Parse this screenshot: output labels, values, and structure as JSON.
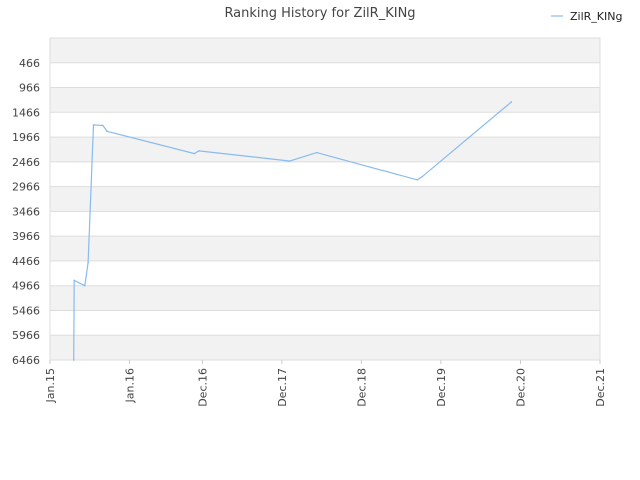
{
  "chart_data": {
    "type": "line",
    "title": "Ranking History for ZilR_KINg",
    "xlabel": "",
    "ylabel": "",
    "x_tick_labels": [
      "Jan.15",
      "Jan.16",
      "Dec.16",
      "Dec.17",
      "Dec.18",
      "Dec.19",
      "Dec.20",
      "Dec.21"
    ],
    "x_tick_dates": [
      "2015-01-01",
      "2016-01-01",
      "2016-12-01",
      "2017-12-01",
      "2018-12-01",
      "2019-12-01",
      "2020-12-01",
      "2021-12-01"
    ],
    "xlim": [
      "2015-01-01",
      "2021-12-01"
    ],
    "y_tick_labels": [
      "466",
      "966",
      "1466",
      "1966",
      "2466",
      "2966",
      "3466",
      "3966",
      "4466",
      "4966",
      "5466",
      "5966",
      "6466"
    ],
    "y_ticks": [
      466,
      966,
      1466,
      1966,
      2466,
      2966,
      3466,
      3966,
      4466,
      4966,
      5466,
      5966,
      6466
    ],
    "ylim": [
      -34,
      6466
    ],
    "y_inverted": true,
    "grid": true,
    "legend_position": "top-right",
    "series": [
      {
        "name": "ZilR_KINg",
        "color": "#88bbee",
        "x": [
          "2015-04-20",
          "2015-04-22",
          "2015-06-10",
          "2015-06-25",
          "2015-07-20",
          "2015-09-01",
          "2015-09-20",
          "2016-10-25",
          "2016-11-15",
          "2017-12-20",
          "2018-01-05",
          "2018-05-10",
          "2019-08-15",
          "2019-09-05",
          "2020-10-20"
        ],
        "values": [
          6466,
          4860,
          4966,
          4500,
          1720,
          1730,
          1850,
          2300,
          2245,
          2440,
          2450,
          2280,
          2830,
          2770,
          1255
        ]
      }
    ]
  },
  "colors": {
    "grid_band": "#f2f2f2",
    "grid_line": "#dddddd",
    "axis": "#cccccc",
    "line": "#88bbee"
  }
}
